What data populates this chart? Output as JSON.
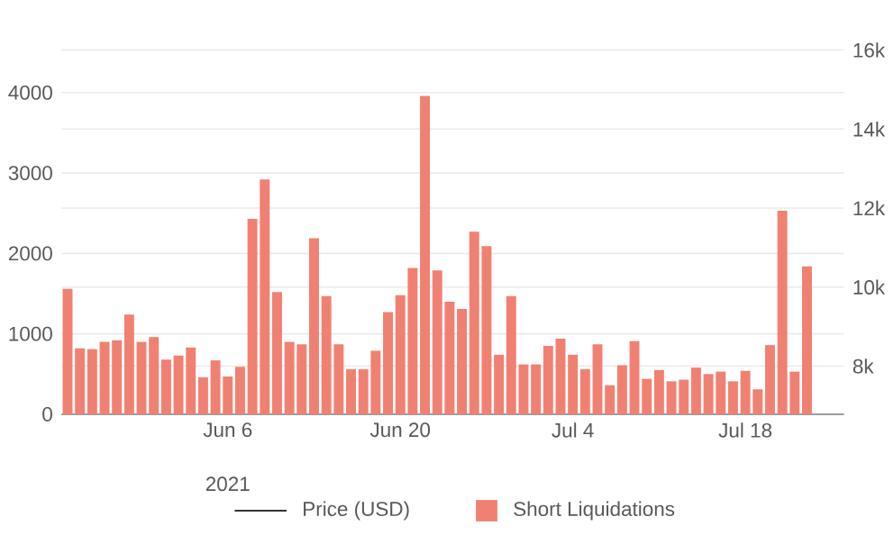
{
  "chart_data": {
    "type": "bar",
    "x": [
      "2021-05-24",
      "2021-05-25",
      "2021-05-26",
      "2021-05-27",
      "2021-05-28",
      "2021-05-29",
      "2021-05-30",
      "2021-05-31",
      "2021-06-01",
      "2021-06-02",
      "2021-06-03",
      "2021-06-04",
      "2021-06-05",
      "2021-06-06",
      "2021-06-07",
      "2021-06-08",
      "2021-06-09",
      "2021-06-10",
      "2021-06-11",
      "2021-06-12",
      "2021-06-13",
      "2021-06-14",
      "2021-06-15",
      "2021-06-16",
      "2021-06-17",
      "2021-06-18",
      "2021-06-19",
      "2021-06-20",
      "2021-06-21",
      "2021-06-22",
      "2021-06-23",
      "2021-06-24",
      "2021-06-25",
      "2021-06-26",
      "2021-06-27",
      "2021-06-28",
      "2021-06-29",
      "2021-06-30",
      "2021-07-01",
      "2021-07-02",
      "2021-07-03",
      "2021-07-04",
      "2021-07-05",
      "2021-07-06",
      "2021-07-07",
      "2021-07-08",
      "2021-07-09",
      "2021-07-10",
      "2021-07-11",
      "2021-07-12",
      "2021-07-13",
      "2021-07-14",
      "2021-07-15",
      "2021-07-16",
      "2021-07-17",
      "2021-07-18",
      "2021-07-19",
      "2021-07-20",
      "2021-07-21",
      "2021-07-22",
      "2021-07-23"
    ],
    "series": [
      {
        "name": "Price (USD)",
        "type": "line",
        "color": "#333333",
        "values": [
          null,
          null,
          null,
          null,
          null,
          null,
          null,
          null,
          null,
          null,
          null,
          null,
          null,
          null,
          null,
          null,
          null,
          null,
          null,
          null,
          null,
          null,
          null,
          null,
          null,
          null,
          null,
          null,
          null,
          null,
          null,
          null,
          null,
          null,
          null,
          null,
          null,
          null,
          null,
          null,
          null,
          null,
          null,
          null,
          null,
          null,
          null,
          null,
          null,
          null,
          null,
          null,
          null,
          null,
          null,
          null,
          null,
          null,
          null,
          null,
          null
        ]
      },
      {
        "name": "Short Liquidations",
        "color": "#f08172",
        "values": [
          1560,
          820,
          810,
          900,
          920,
          1240,
          900,
          960,
          680,
          730,
          830,
          460,
          670,
          470,
          590,
          2430,
          2920,
          1520,
          900,
          870,
          2190,
          1470,
          870,
          560,
          560,
          790,
          1270,
          1480,
          1820,
          3960,
          1790,
          1400,
          1310,
          2270,
          2090,
          740,
          1470,
          620,
          620,
          850,
          940,
          740,
          560,
          870,
          360,
          610,
          910,
          440,
          550,
          410,
          430,
          580,
          500,
          530,
          410,
          540,
          310,
          860,
          2530,
          530,
          1840
        ]
      }
    ],
    "xlim": [
      "2021-05-23T12:00",
      "2021-07-26T00:00"
    ],
    "xticks": [
      {
        "value": "2021-06-06",
        "label": "Jun 6"
      },
      {
        "value": "2021-06-20",
        "label": "Jun 20"
      },
      {
        "value": "2021-07-04",
        "label": "Jul 4"
      },
      {
        "value": "2021-07-18",
        "label": "Jul 18"
      }
    ],
    "ylim": [
      0,
      4530
    ],
    "yticks": [
      0,
      1000,
      2000,
      3000,
      4000
    ],
    "y2lim": [
      6780,
      16000
    ],
    "y2ticks": [
      {
        "value": 8000,
        "label": "8k"
      },
      {
        "value": 10000,
        "label": "10k"
      },
      {
        "value": 12000,
        "label": "12k"
      },
      {
        "value": 14000,
        "label": "14k"
      },
      {
        "value": 16000,
        "label": "16k"
      }
    ],
    "annotations": [
      "2021"
    ],
    "grid": "y",
    "legend": "bottom"
  }
}
